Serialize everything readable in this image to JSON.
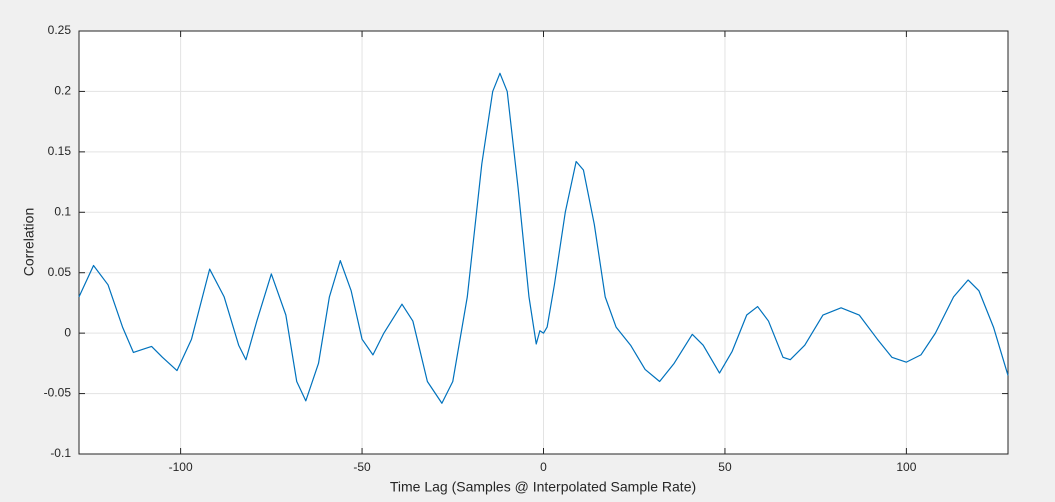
{
  "chart_data": {
    "type": "line",
    "xlabel": "Time Lag (Samples @ Interpolated Sample Rate)",
    "ylabel": "Correlation",
    "x": [
      -128,
      -124,
      -120,
      -116,
      -113,
      -110,
      -108,
      -105,
      -101,
      -97,
      -92,
      -88,
      -84,
      -82,
      -79,
      -75,
      -71,
      -68,
      -65.5,
      -62,
      -59,
      -56,
      -53,
      -50,
      -47,
      -44,
      -39,
      -36,
      -32,
      -28,
      -25,
      -21,
      -17,
      -14,
      -12,
      -10,
      -7,
      -4,
      -2,
      -1,
      0,
      1,
      3,
      6,
      9,
      11,
      14,
      17,
      20,
      24,
      28,
      32,
      36,
      41,
      44,
      48.5,
      52,
      56,
      59,
      62,
      66,
      68,
      72,
      77,
      82,
      87,
      92,
      96,
      100,
      104,
      108,
      113,
      117,
      120,
      124,
      128
    ],
    "values": [
      0.03,
      0.056,
      0.04,
      0.005,
      -0.016,
      -0.013,
      -0.011,
      -0.02,
      -0.031,
      -0.005,
      0.053,
      0.03,
      -0.01,
      -0.022,
      0.01,
      0.049,
      0.015,
      -0.04,
      -0.056,
      -0.025,
      0.03,
      0.06,
      0.035,
      -0.005,
      -0.018,
      0,
      0.024,
      0.01,
      -0.04,
      -0.058,
      -0.04,
      0.03,
      0.14,
      0.2,
      0.215,
      0.2,
      0.12,
      0.03,
      -0.009,
      0.002,
      0,
      0.005,
      0.04,
      0.1,
      0.142,
      0.135,
      0.09,
      0.03,
      0.005,
      -0.01,
      -0.03,
      -0.04,
      -0.025,
      -0.001,
      -0.01,
      -0.033,
      -0.015,
      0.015,
      0.022,
      0.01,
      -0.02,
      -0.022,
      -0.01,
      0.015,
      0.021,
      0.015,
      -0.005,
      -0.02,
      -0.024,
      -0.018,
      0,
      0.03,
      0.044,
      0.035,
      0.005,
      -0.035
    ],
    "color": "#0072bd",
    "xlim": [
      -128,
      128
    ],
    "xticks": [
      -100,
      -50,
      0,
      50,
      100
    ],
    "ylim": [
      -0.1,
      0.25
    ],
    "yticks": [
      -0.1,
      -0.05,
      0,
      0.05,
      0.1,
      0.15,
      0.2,
      0.25
    ],
    "grid": true
  }
}
